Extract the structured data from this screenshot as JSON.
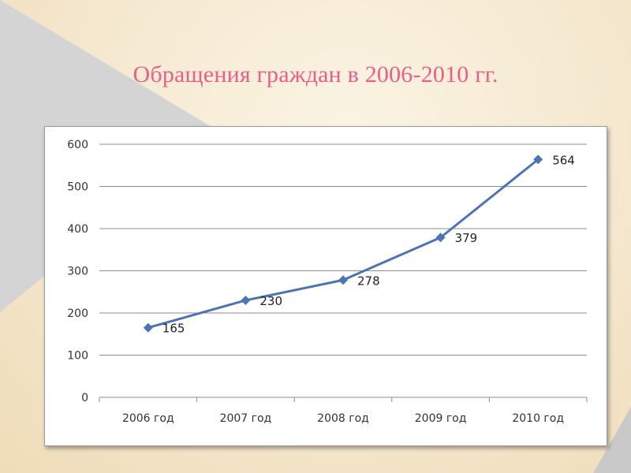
{
  "title": "Обращения граждан  в 2006-2010 гг.",
  "colors": {
    "title": "#ea5f8a",
    "series": "#4a74b4",
    "grid": "#8c8c8c"
  },
  "chart_data": {
    "type": "line",
    "categories": [
      "2006 год",
      "2007 год",
      "2008 год",
      "2009 год",
      "2010 год"
    ],
    "series": [
      {
        "values": [
          165,
          230,
          278,
          379,
          564
        ]
      }
    ],
    "data_labels": [
      "165",
      "230",
      "278",
      "379",
      "564"
    ],
    "y_ticks": [
      0,
      100,
      200,
      300,
      400,
      500,
      600
    ],
    "ylim": [
      0,
      600
    ],
    "grid": true,
    "legend": "none",
    "marker": "diamond"
  }
}
